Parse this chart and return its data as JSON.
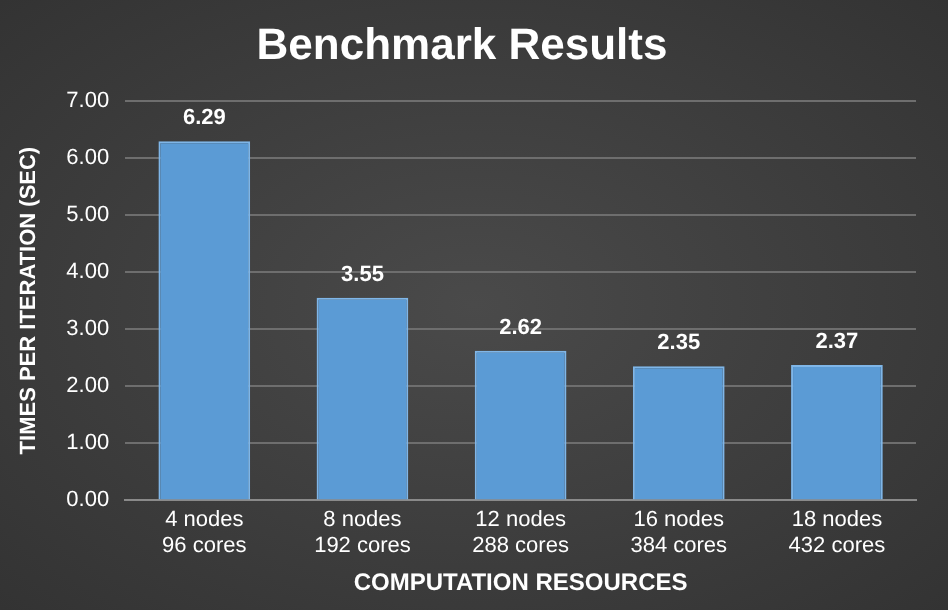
{
  "chart_data": {
    "type": "bar",
    "title": "Benchmark Results",
    "xlabel": "COMPUTATION RESOURCES",
    "ylabel": "TIMES PER ITERATION (SEC)",
    "categories": [
      "4 nodes\n96 cores",
      "8 nodes\n192 cores",
      "12 nodes\n288 cores",
      "16 nodes\n384 cores",
      "18 nodes\n432 cores"
    ],
    "values": [
      6.29,
      3.55,
      2.62,
      2.35,
      2.37
    ],
    "color": "#5b9bd5",
    "ylim": [
      0,
      7
    ],
    "yticks": [
      {
        "value": 0,
        "label": "0.00"
      },
      {
        "value": 1,
        "label": "1.00"
      },
      {
        "value": 2,
        "label": "2.00"
      },
      {
        "value": 3,
        "label": "3.00"
      },
      {
        "value": 4,
        "label": "4.00"
      },
      {
        "value": 5,
        "label": "5.00"
      },
      {
        "value": 6,
        "label": "6.00"
      },
      {
        "value": 7,
        "label": "7.00"
      }
    ],
    "grid": "y",
    "data_labels": true
  }
}
